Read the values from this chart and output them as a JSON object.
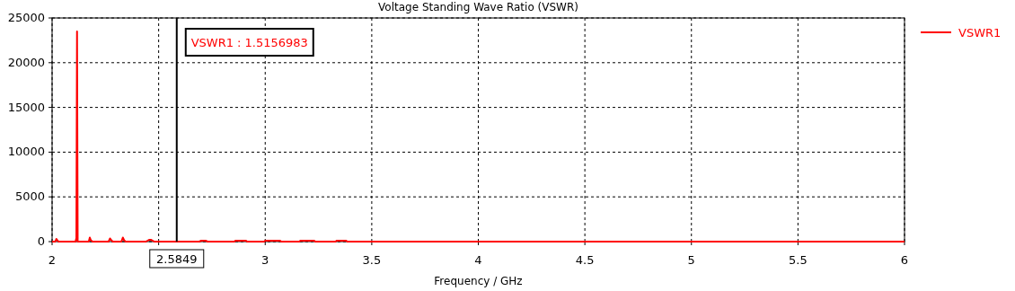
{
  "chart_data": {
    "type": "line",
    "title": "Voltage Standing Wave Ratio (VSWR)",
    "xlabel": "Frequency / GHz",
    "xlim": [
      2,
      6
    ],
    "xticks": [
      2,
      {
        "value": 2.5,
        "label": null
      },
      3,
      3.5,
      4,
      4.5,
      5,
      5.5,
      6
    ],
    "ylim": [
      0,
      25000
    ],
    "yticks": [
      0,
      5000,
      10000,
      15000,
      20000,
      25000
    ],
    "grid": true,
    "legend": "top right",
    "line_style": "solid",
    "series": [
      {
        "name": "VSWR1",
        "color": "#ff0000",
        "x": [
          2,
          2.015,
          2.02,
          2.025,
          2.03,
          2.11,
          2.114,
          2.117,
          2.12,
          2.125,
          2.172,
          2.177,
          2.182,
          2.19,
          2.265,
          2.272,
          2.278,
          2.285,
          2.325,
          2.332,
          2.338,
          2.345,
          2.44,
          2.455,
          2.465,
          2.48,
          2.69,
          2.7,
          2.72,
          2.73,
          2.855,
          2.86,
          2.91,
          2.915,
          2.995,
          3.0,
          3.07,
          3.075,
          3.16,
          3.165,
          3.23,
          3.235,
          3.33,
          3.335,
          3.38,
          3.385,
          6
        ],
        "values": [
          0,
          0,
          300,
          150,
          0,
          0,
          400,
          23500,
          0,
          0,
          0,
          450,
          150,
          0,
          0,
          350,
          150,
          0,
          0,
          450,
          150,
          0,
          0,
          200,
          200,
          0,
          0,
          100,
          100,
          0,
          0,
          100,
          100,
          0,
          0,
          100,
          100,
          0,
          0,
          100,
          100,
          0,
          0,
          100,
          100,
          0,
          0
        ]
      }
    ],
    "ref_lines": [
      {
        "axis": "x",
        "value": 2.5849,
        "label": "2.5849",
        "color": "#000000"
      }
    ],
    "annotations": [
      "VSWR1 : 1.5156983"
    ]
  }
}
